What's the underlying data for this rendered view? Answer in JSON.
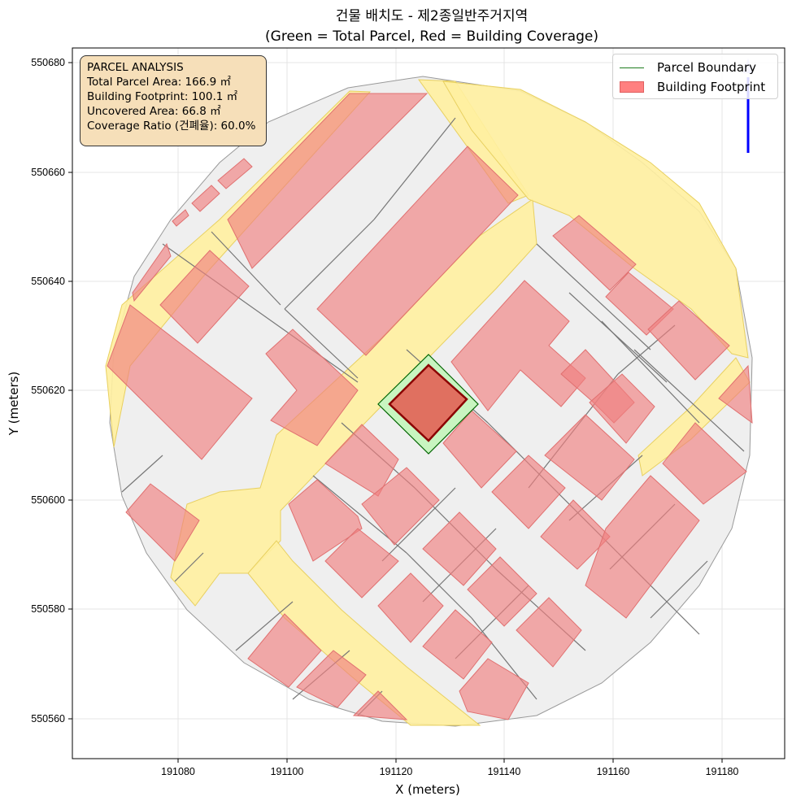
{
  "title_line1": "건물 배치도 - 제2종일반주거지역",
  "title_line2": "(Green = Total Parcel, Red = Building Coverage)",
  "xlabel": "X (meters)",
  "ylabel": "Y (meters)",
  "xticks": [
    "191080",
    "191100",
    "191120",
    "191140",
    "191160",
    "191180"
  ],
  "yticks": [
    "550680",
    "550660",
    "550640",
    "550620",
    "550600",
    "550580",
    "550560"
  ],
  "analysis": {
    "heading": "PARCEL ANALYSIS",
    "total": "Total Parcel Area: 166.9 ㎡",
    "footprint": "Building Footprint: 100.1 ㎡",
    "uncovered": "Uncovered Area: 66.8 ㎡",
    "ratio": "Coverage Ratio (건폐율): 60.0%"
  },
  "legend": {
    "parcel": "Parcel Boundary",
    "building": "Building Footprint"
  },
  "colors": {
    "parcel_fill": "#c8f5c0",
    "parcel_edge": "#006400",
    "building_fill": "#f08080",
    "target_building": "#e07060",
    "road": "#fff0a0",
    "lot_fill": "#efefef",
    "north_arrow": "#0000ff"
  }
}
